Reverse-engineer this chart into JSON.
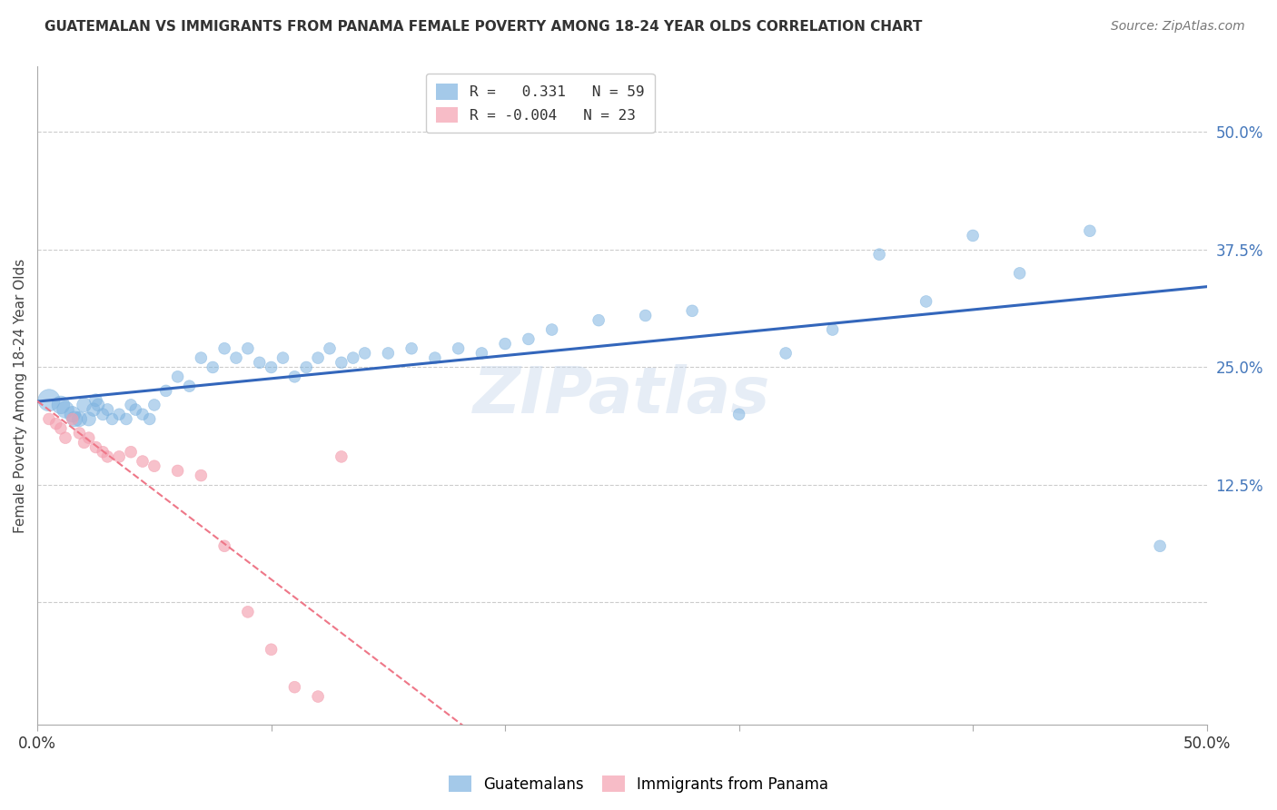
{
  "title": "GUATEMALAN VS IMMIGRANTS FROM PANAMA FEMALE POVERTY AMONG 18-24 YEAR OLDS CORRELATION CHART",
  "source": "Source: ZipAtlas.com",
  "ylabel": "Female Poverty Among 18-24 Year Olds",
  "right_yticks": [
    "50.0%",
    "37.5%",
    "25.0%",
    "12.5%"
  ],
  "right_ytick_vals": [
    0.5,
    0.375,
    0.25,
    0.125
  ],
  "xmin": 0.0,
  "xmax": 0.5,
  "ymin": -0.13,
  "ymax": 0.57,
  "blue_color": "#7EB3E0",
  "pink_color": "#F4A0B0",
  "blue_line_color": "#3366BB",
  "pink_line_color": "#EE7788",
  "watermark_text": "ZIPatlas",
  "legend_label1": "R =   0.331   N = 59",
  "legend_label2": "R = -0.004   N = 23",
  "bottom_label1": "Guatemalans",
  "bottom_label2": "Immigrants from Panama",
  "guatemalan_x": [
    0.005,
    0.01,
    0.012,
    0.015,
    0.016,
    0.018,
    0.02,
    0.022,
    0.024,
    0.025,
    0.026,
    0.028,
    0.03,
    0.032,
    0.035,
    0.038,
    0.04,
    0.042,
    0.045,
    0.048,
    0.05,
    0.055,
    0.06,
    0.065,
    0.07,
    0.075,
    0.08,
    0.085,
    0.09,
    0.095,
    0.1,
    0.105,
    0.11,
    0.115,
    0.12,
    0.125,
    0.13,
    0.135,
    0.14,
    0.15,
    0.16,
    0.17,
    0.18,
    0.19,
    0.2,
    0.21,
    0.22,
    0.24,
    0.26,
    0.28,
    0.3,
    0.32,
    0.34,
    0.36,
    0.38,
    0.4,
    0.42,
    0.45,
    0.48
  ],
  "guatemalan_y": [
    0.215,
    0.21,
    0.205,
    0.2,
    0.195,
    0.195,
    0.21,
    0.195,
    0.205,
    0.215,
    0.21,
    0.2,
    0.205,
    0.195,
    0.2,
    0.195,
    0.21,
    0.205,
    0.2,
    0.195,
    0.21,
    0.225,
    0.24,
    0.23,
    0.26,
    0.25,
    0.27,
    0.26,
    0.27,
    0.255,
    0.25,
    0.26,
    0.24,
    0.25,
    0.26,
    0.27,
    0.255,
    0.26,
    0.265,
    0.265,
    0.27,
    0.26,
    0.27,
    0.265,
    0.275,
    0.28,
    0.29,
    0.3,
    0.305,
    0.31,
    0.2,
    0.265,
    0.29,
    0.37,
    0.32,
    0.39,
    0.35,
    0.395,
    0.06
  ],
  "guatemalan_sizes": [
    300,
    200,
    180,
    160,
    150,
    140,
    130,
    120,
    110,
    100,
    100,
    90,
    90,
    85,
    85,
    85,
    85,
    85,
    85,
    85,
    85,
    85,
    85,
    85,
    85,
    85,
    85,
    85,
    85,
    85,
    85,
    85,
    85,
    85,
    85,
    85,
    85,
    85,
    85,
    85,
    85,
    85,
    85,
    85,
    85,
    85,
    85,
    85,
    85,
    85,
    85,
    85,
    85,
    85,
    85,
    85,
    85,
    85,
    85
  ],
  "panama_x": [
    0.005,
    0.008,
    0.01,
    0.012,
    0.015,
    0.018,
    0.02,
    0.022,
    0.025,
    0.028,
    0.03,
    0.035,
    0.04,
    0.045,
    0.05,
    0.06,
    0.07,
    0.08,
    0.09,
    0.1,
    0.11,
    0.12,
    0.13
  ],
  "panama_y": [
    0.195,
    0.19,
    0.185,
    0.175,
    0.195,
    0.18,
    0.17,
    0.175,
    0.165,
    0.16,
    0.155,
    0.155,
    0.16,
    0.15,
    0.145,
    0.14,
    0.135,
    0.06,
    -0.01,
    -0.05,
    -0.09,
    -0.1,
    0.155
  ],
  "panama_sizes": [
    85,
    85,
    85,
    85,
    85,
    85,
    85,
    85,
    85,
    85,
    85,
    85,
    85,
    85,
    85,
    85,
    85,
    85,
    85,
    85,
    85,
    85,
    85
  ]
}
